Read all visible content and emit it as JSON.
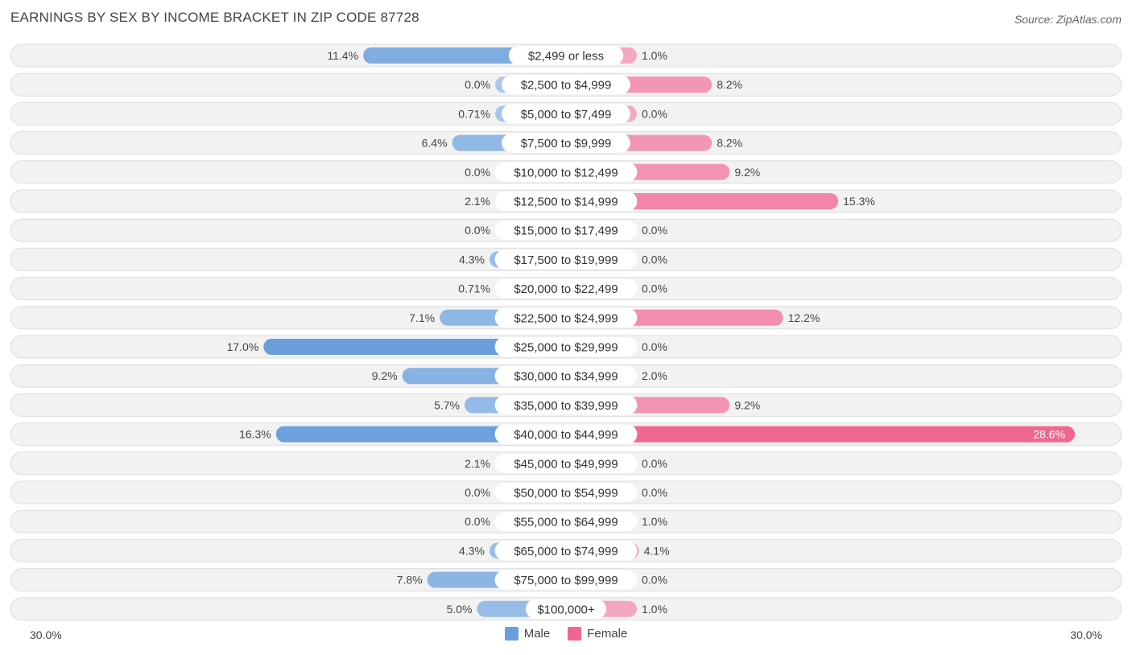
{
  "title": "EARNINGS BY SEX BY INCOME BRACKET IN ZIP CODE 87728",
  "source": "Source: ZipAtlas.com",
  "colors": {
    "male_light": "#a9c8ec",
    "male_dark": "#6a9fdc",
    "female_light": "#f4a9c2",
    "female_dark": "#f06890",
    "row_bg": "#f2f2f2",
    "row_border": "#dddddd"
  },
  "legend": {
    "male": "Male",
    "female": "Female"
  },
  "axis": {
    "left": "30.0%",
    "right": "30.0%"
  },
  "chart_data": {
    "type": "bar",
    "orientation": "horizontal-diverging",
    "title": "EARNINGS BY SEX BY INCOME BRACKET IN ZIP CODE 87728",
    "xlim": [
      -30,
      30
    ],
    "categories": [
      "$2,499 or less",
      "$2,500 to $4,999",
      "$5,000 to $7,499",
      "$7,500 to $9,999",
      "$10,000 to $12,499",
      "$12,500 to $14,999",
      "$15,000 to $17,499",
      "$17,500 to $19,999",
      "$20,000 to $22,499",
      "$22,500 to $24,999",
      "$25,000 to $29,999",
      "$30,000 to $34,999",
      "$35,000 to $39,999",
      "$40,000 to $44,999",
      "$45,000 to $49,999",
      "$50,000 to $54,999",
      "$55,000 to $64,999",
      "$65,000 to $74,999",
      "$75,000 to $99,999",
      "$100,000+"
    ],
    "series": [
      {
        "name": "Male",
        "values": [
          11.4,
          0.0,
          0.71,
          6.4,
          0.0,
          2.1,
          0.0,
          4.3,
          0.71,
          7.1,
          17.0,
          9.2,
          5.7,
          16.3,
          2.1,
          0.0,
          0.0,
          4.3,
          7.8,
          5.0
        ],
        "labels": [
          "11.4%",
          "0.0%",
          "0.71%",
          "6.4%",
          "0.0%",
          "2.1%",
          "0.0%",
          "4.3%",
          "0.71%",
          "7.1%",
          "17.0%",
          "9.2%",
          "5.7%",
          "16.3%",
          "2.1%",
          "0.0%",
          "0.0%",
          "4.3%",
          "7.8%",
          "5.0%"
        ]
      },
      {
        "name": "Female",
        "values": [
          1.0,
          8.2,
          0.0,
          8.2,
          9.2,
          15.3,
          0.0,
          0.0,
          0.0,
          12.2,
          0.0,
          2.0,
          9.2,
          28.6,
          0.0,
          0.0,
          1.0,
          4.1,
          0.0,
          1.0
        ],
        "labels": [
          "1.0%",
          "8.2%",
          "0.0%",
          "8.2%",
          "9.2%",
          "15.3%",
          "0.0%",
          "0.0%",
          "0.0%",
          "12.2%",
          "0.0%",
          "2.0%",
          "9.2%",
          "28.6%",
          "0.0%",
          "0.0%",
          "1.0%",
          "4.1%",
          "0.0%",
          "1.0%"
        ]
      }
    ]
  }
}
